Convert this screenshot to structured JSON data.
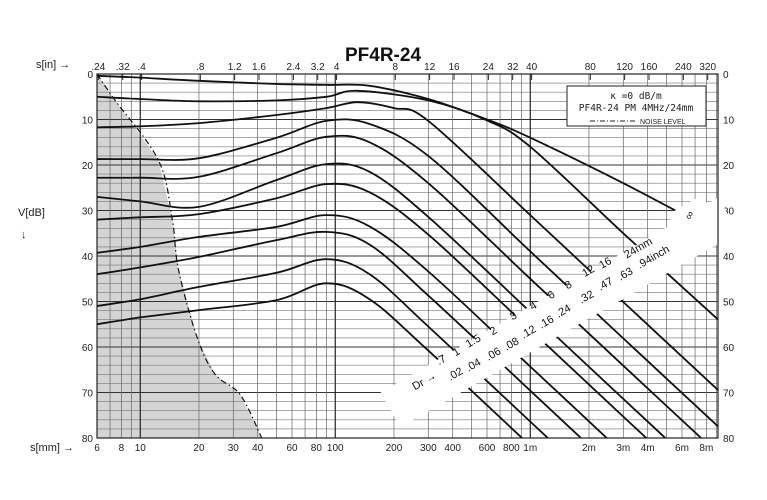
{
  "chart_data": {
    "type": "line",
    "title": "PF4R-24",
    "x_axis_bottom": {
      "label": "s[mm] →",
      "scale": "log",
      "range_mm": [
        6,
        9200
      ],
      "ticks": [
        [
          6,
          "6"
        ],
        [
          8,
          "8"
        ],
        [
          10,
          "10"
        ],
        [
          20,
          "20"
        ],
        [
          30,
          "30"
        ],
        [
          40,
          "40"
        ],
        [
          60,
          "60"
        ],
        [
          80,
          "80"
        ],
        [
          100,
          "100"
        ],
        [
          200,
          "200"
        ],
        [
          300,
          "300"
        ],
        [
          400,
          "400"
        ],
        [
          600,
          "600"
        ],
        [
          800,
          "800"
        ],
        [
          1000,
          "1m"
        ],
        [
          2000,
          "2m"
        ],
        [
          3000,
          "3m"
        ],
        [
          4000,
          "4m"
        ],
        [
          6000,
          "6m"
        ],
        [
          8000,
          "8m"
        ]
      ]
    },
    "x_axis_top": {
      "label": "s[in] →",
      "scale": "log",
      "ticks": [
        [
          0.24,
          ".24"
        ],
        [
          0.32,
          ".32"
        ],
        [
          0.4,
          ".4"
        ],
        [
          0.8,
          ".8"
        ],
        [
          1.2,
          "1.2"
        ],
        [
          1.6,
          "1.6"
        ],
        [
          2.4,
          "2.4"
        ],
        [
          3.2,
          "3.2"
        ],
        [
          4,
          "4"
        ],
        [
          8,
          "8"
        ],
        [
          12,
          "12"
        ],
        [
          16,
          "16"
        ],
        [
          24,
          "24"
        ],
        [
          32,
          "32"
        ],
        [
          40,
          "40"
        ],
        [
          80,
          "80"
        ],
        [
          120,
          "120"
        ],
        [
          160,
          "160"
        ],
        [
          240,
          "240"
        ],
        [
          320,
          "320"
        ]
      ]
    },
    "y_axis": {
      "label": "V[dB]",
      "arrow": "↓",
      "range": [
        0,
        80
      ],
      "inverted": true,
      "ticks": [
        "0",
        "10",
        "20",
        "30",
        "40",
        "50",
        "60",
        "70",
        "80"
      ]
    },
    "grid": true,
    "legend": {
      "placement": "top-right",
      "line1": "κ =0 dB/m",
      "line2": "PF4R-24 PM 4MHz/24mm",
      "noise_label": "NOISE LEVEL"
    },
    "series": [
      {
        "name": "∞",
        "points": [
          [
            6,
            0.4
          ],
          [
            10,
            0.8
          ],
          [
            20,
            1.5
          ],
          [
            50,
            2.2
          ],
          [
            90,
            2.4
          ],
          [
            150,
            2.6
          ],
          [
            300,
            5.5
          ],
          [
            600,
            10
          ],
          [
            1000,
            14
          ],
          [
            3000,
            24
          ],
          [
            9200,
            35
          ]
        ]
      },
      {
        "name": "24",
        "points": [
          [
            6,
            5
          ],
          [
            10,
            5.5
          ],
          [
            20,
            6
          ],
          [
            50,
            5.8
          ],
          [
            90,
            5
          ],
          [
            130,
            3.7
          ],
          [
            300,
            5.8
          ],
          [
            600,
            10.2
          ],
          [
            1000,
            16
          ],
          [
            3000,
            35
          ],
          [
            9200,
            54
          ]
        ]
      },
      {
        "name": "16",
        "points": [
          [
            6,
            11.7
          ],
          [
            10,
            11.5
          ],
          [
            20,
            10.8
          ],
          [
            50,
            9
          ],
          [
            90,
            7.5
          ],
          [
            130,
            6.2
          ],
          [
            200,
            7.5
          ],
          [
            300,
            10.3
          ],
          [
            1000,
            31
          ],
          [
            3000,
            50.1
          ],
          [
            9200,
            69.5
          ]
        ]
      },
      {
        "name": "12",
        "points": [
          [
            6,
            18.7
          ],
          [
            10,
            18.7
          ],
          [
            20,
            18.5
          ],
          [
            50,
            14
          ],
          [
            90,
            10.3
          ],
          [
            150,
            11
          ],
          [
            300,
            18
          ],
          [
            1000,
            39
          ],
          [
            3000,
            58.1
          ],
          [
            9200,
            77.5
          ]
        ]
      },
      {
        "name": "8",
        "points": [
          [
            6,
            22.8
          ],
          [
            10,
            22.8
          ],
          [
            20,
            22.6
          ],
          [
            50,
            17.4
          ],
          [
            90,
            13.8
          ],
          [
            150,
            15
          ],
          [
            300,
            24
          ],
          [
            1000,
            45
          ],
          [
            3000,
            64.1
          ],
          [
            9200,
            83.5
          ]
        ]
      },
      {
        "name": "6",
        "points": [
          [
            6,
            27
          ],
          [
            10,
            28
          ],
          [
            20,
            29.2
          ],
          [
            50,
            23.3
          ],
          [
            90,
            19.8
          ],
          [
            150,
            21.5
          ],
          [
            300,
            31.4
          ],
          [
            1000,
            52.3
          ],
          [
            3000,
            71.4
          ],
          [
            9200,
            90.8
          ]
        ]
      },
      {
        "name": "4",
        "points": [
          [
            6,
            32
          ],
          [
            10,
            31.5
          ],
          [
            20,
            30.8
          ],
          [
            50,
            27.3
          ],
          [
            90,
            24.2
          ],
          [
            150,
            26
          ],
          [
            300,
            35.3
          ],
          [
            1000,
            56.2
          ],
          [
            3000,
            75.3
          ],
          [
            9200,
            94.7
          ]
        ]
      },
      {
        "name": "3",
        "points": [
          [
            6,
            39.3
          ],
          [
            10,
            38
          ],
          [
            20,
            35.8
          ],
          [
            50,
            33.6
          ],
          [
            90,
            31
          ],
          [
            150,
            33.5
          ],
          [
            300,
            43.4
          ],
          [
            1000,
            64.3
          ],
          [
            3000,
            83.4
          ]
        ]
      },
      {
        "name": "2",
        "points": [
          [
            6,
            44
          ],
          [
            10,
            42.5
          ],
          [
            20,
            40.2
          ],
          [
            50,
            36.5
          ],
          [
            90,
            34.7
          ],
          [
            150,
            37.5
          ],
          [
            300,
            48.7
          ],
          [
            1000,
            69.6
          ],
          [
            3000,
            88.7
          ]
        ]
      },
      {
        "name": "1.5",
        "points": [
          [
            6,
            51
          ],
          [
            10,
            49.5
          ],
          [
            20,
            46.8
          ],
          [
            50,
            43.7
          ],
          [
            90,
            40.7
          ],
          [
            150,
            44
          ],
          [
            300,
            55.5
          ],
          [
            1000,
            76.4
          ],
          [
            3000,
            95.5
          ]
        ]
      },
      {
        "name": "1",
        "points": [
          [
            6,
            55
          ],
          [
            10,
            53.5
          ],
          [
            20,
            51.9
          ],
          [
            50,
            49.7
          ],
          [
            90,
            46
          ],
          [
            150,
            49.5
          ],
          [
            300,
            60.8
          ],
          [
            1000,
            81.7
          ]
        ]
      }
    ],
    "noise_level": [
      [
        6,
        0
      ],
      [
        7.4,
        5.7
      ],
      [
        12.4,
        19
      ],
      [
        14.6,
        32
      ],
      [
        15.7,
        43
      ],
      [
        19.6,
        58
      ],
      [
        24.2,
        66
      ],
      [
        32.6,
        70.5
      ],
      [
        42,
        80
      ]
    ],
    "reflector_labels": {
      "prefix": "Dr →",
      "mm": [
        ".7",
        "1",
        "1.5",
        "2",
        "3",
        "4",
        "6",
        "8",
        "12",
        "16",
        "24mm"
      ],
      "inch": [
        ".02",
        ".04",
        ".06",
        ".08",
        ".12",
        ".16",
        ".24",
        ".32",
        ".47",
        ".63",
        ".94inch"
      ],
      "infinity": "∞"
    }
  }
}
